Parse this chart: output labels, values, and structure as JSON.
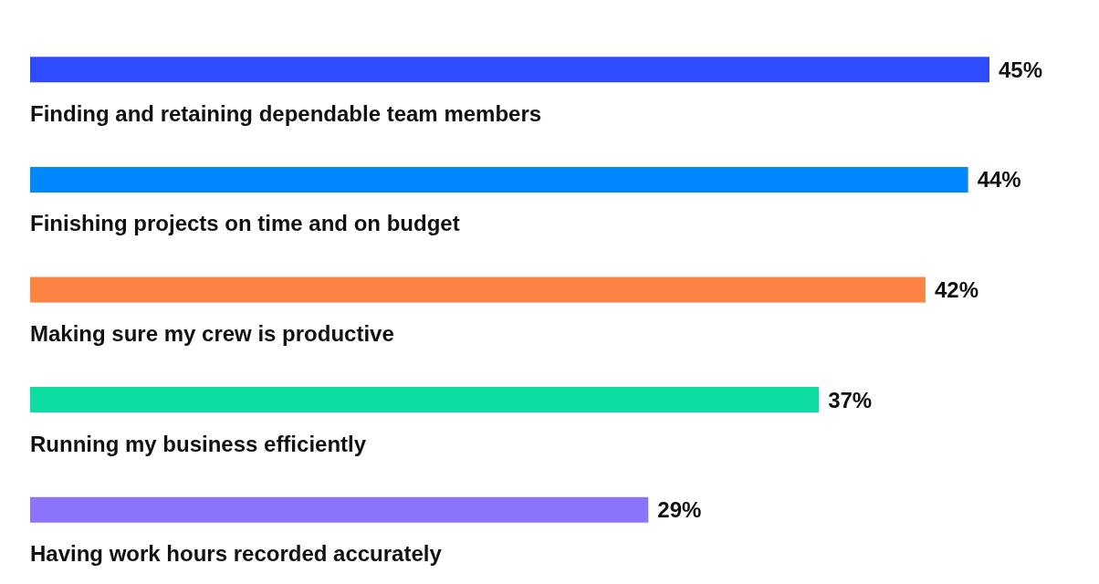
{
  "chart_data": {
    "type": "bar",
    "orientation": "horizontal",
    "categories": [
      "Finding and retaining dependable team members",
      "Finishing projects on time and on budget",
      "Making sure my crew is productive",
      "Running my business efficiently",
      "Having work hours recorded accurately"
    ],
    "values": [
      45,
      44,
      42,
      37,
      29
    ],
    "colors": [
      "#2f4bff",
      "#0088ff",
      "#ff8444",
      "#0ddda3",
      "#8c74ff"
    ],
    "value_labels": [
      "45%",
      "44%",
      "42%",
      "37%",
      "29%"
    ]
  }
}
